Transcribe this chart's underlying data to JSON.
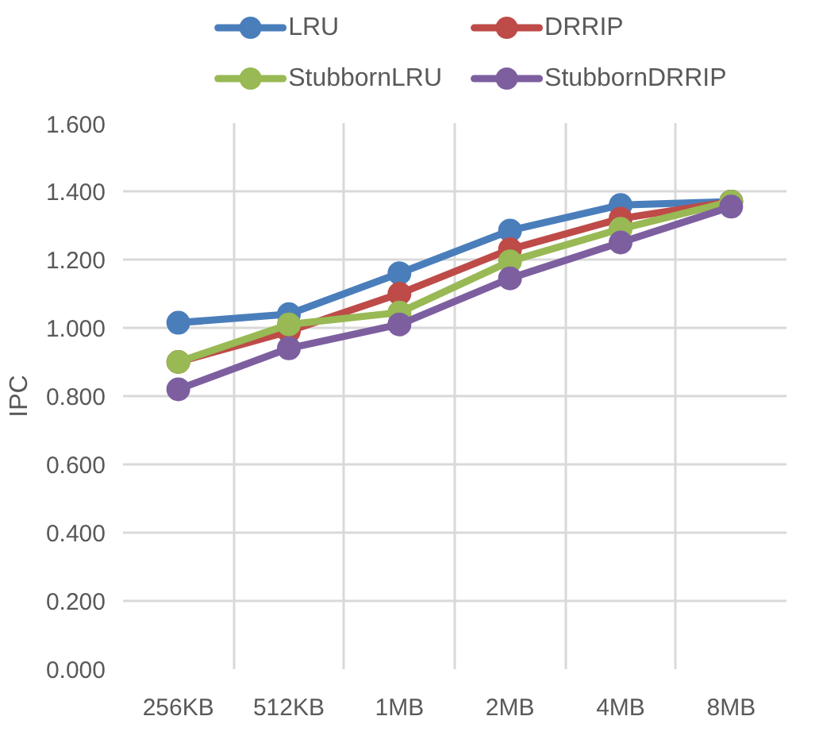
{
  "chart_data": {
    "type": "line",
    "ylabel": "IPC",
    "categories": [
      "256KB",
      "512KB",
      "1MB",
      "2MB",
      "4MB",
      "8MB"
    ],
    "series": [
      {
        "name": "LRU",
        "color": "#4a7ebb",
        "values": [
          1.015,
          1.04,
          1.16,
          1.285,
          1.36,
          1.37
        ]
      },
      {
        "name": "DRRIP",
        "color": "#be4b48",
        "values": [
          0.9,
          0.99,
          1.1,
          1.23,
          1.32,
          1.37
        ]
      },
      {
        "name": "StubbornLRU",
        "color": "#98b954",
        "values": [
          0.9,
          1.01,
          1.045,
          1.195,
          1.29,
          1.37
        ]
      },
      {
        "name": "StubbornDRRIP",
        "color": "#7d5fa0",
        "values": [
          0.82,
          0.94,
          1.01,
          1.145,
          1.25,
          1.355
        ]
      }
    ],
    "ylim": [
      0,
      1.6
    ],
    "yticks": [
      {
        "value": 0,
        "label": "0.000"
      },
      {
        "value": 0.2,
        "label": "0.200"
      },
      {
        "value": 0.4,
        "label": "0.400"
      },
      {
        "value": 0.6,
        "label": "0.600"
      },
      {
        "value": 0.8,
        "label": "0.800"
      },
      {
        "value": 1.0,
        "label": "1.000"
      },
      {
        "value": 1.2,
        "label": "1.200"
      },
      {
        "value": 1.4,
        "label": "1.400"
      },
      {
        "value": 1.6,
        "label": "1.600"
      }
    ],
    "grid": true,
    "legend": "top",
    "marker": "circle",
    "line_style": "solid"
  }
}
